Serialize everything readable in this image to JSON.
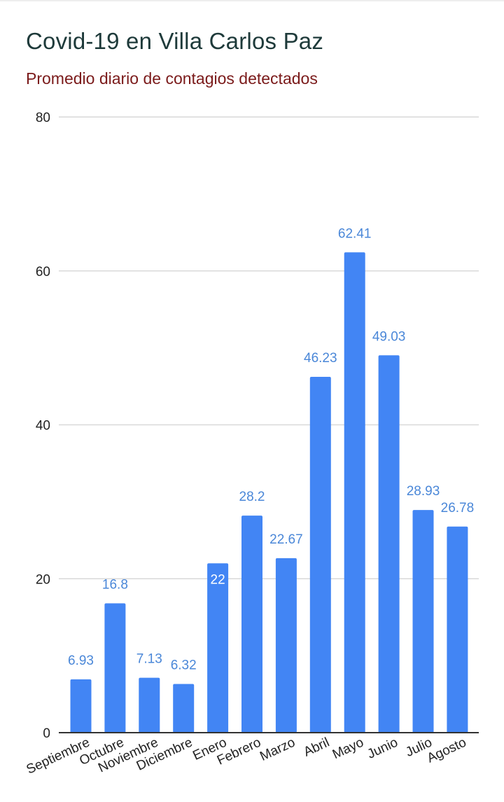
{
  "title": "Covid-19 en Villa Carlos Paz",
  "subtitle": "Promedio diario de contagios detectados",
  "colors": {
    "bar": "#4285f4",
    "data_label": "#4a87d8",
    "data_label_inside": "#ffffff",
    "gridline": "#d9d9d9",
    "axis": "#333333",
    "title": "#1e3a3a",
    "subtitle": "#7b1b1b"
  },
  "chart_data": {
    "type": "bar",
    "title": "Covid-19 en Villa Carlos Paz",
    "subtitle": "Promedio diario de contagios detectados",
    "categories": [
      "Septiembre",
      "Octubre",
      "Noviembre",
      "Diciembre",
      "Enero",
      "Febrero",
      "Marzo",
      "Abril",
      "Mayo",
      "Junio",
      "Julio",
      "Agosto"
    ],
    "values": [
      6.93,
      16.8,
      7.13,
      6.32,
      22,
      28.2,
      22.67,
      46.23,
      62.41,
      49.03,
      28.93,
      26.78
    ],
    "value_labels": [
      "6.93",
      "16.8",
      "7.13",
      "6.32",
      "22",
      "28.2",
      "22.67",
      "46.23",
      "62.41",
      "49.03",
      "28.93",
      "26.78"
    ],
    "xlabel": "",
    "ylabel": "",
    "ylim": [
      0,
      80
    ],
    "yticks": [
      "0",
      "20",
      "40",
      "60",
      "80"
    ],
    "grid": true,
    "legend": "none"
  }
}
